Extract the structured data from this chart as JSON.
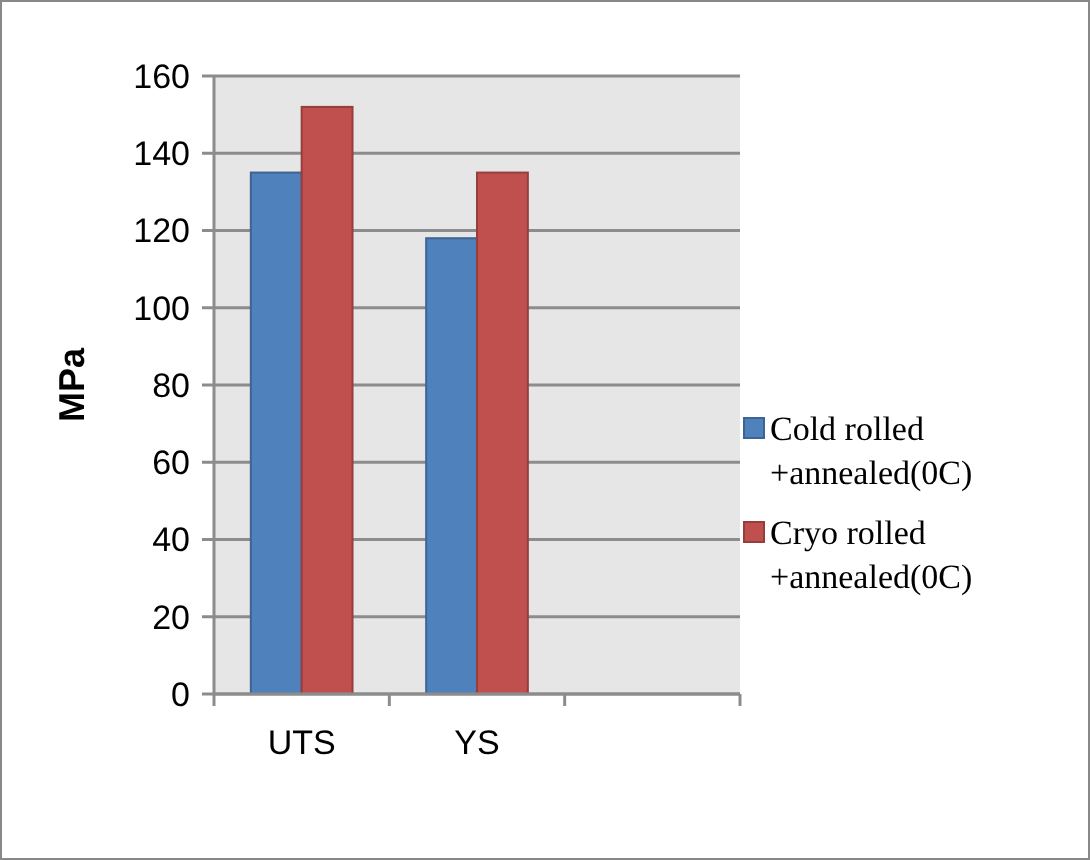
{
  "chart_data": {
    "type": "bar",
    "ylabel": "MPa",
    "categories": [
      "UTS",
      "YS",
      null
    ],
    "series": [
      {
        "name": "Cold rolled +annealed(0C)",
        "color": "#4f81bd",
        "values": [
          135,
          118,
          null
        ]
      },
      {
        "name": "Cryo rolled +annealed(0C)",
        "color": "#c0504d",
        "values": [
          152,
          135,
          null
        ]
      }
    ],
    "ylim": [
      0,
      160
    ],
    "yticks": [
      0,
      20,
      40,
      60,
      80,
      100,
      120,
      140,
      160
    ],
    "grid": "y",
    "legend": "right"
  }
}
